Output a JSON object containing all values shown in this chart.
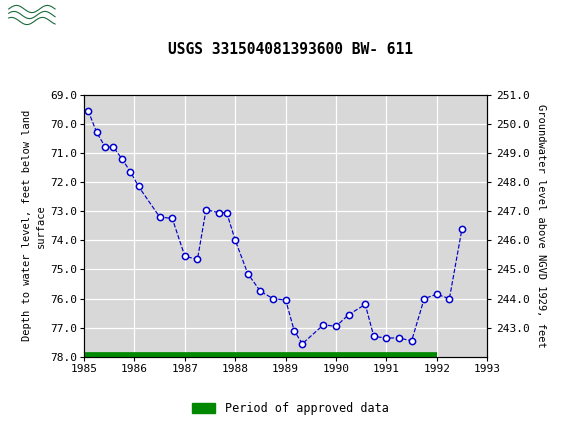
{
  "title": "USGS 331504081393600 BW- 611",
  "ylabel_left": "Depth to water level, feet below land\nsurface",
  "ylabel_right": "Groundwater level above NGVD 1929, feet",
  "header_color": "#1a6b3c",
  "background_color": "#ffffff",
  "plot_bg_color": "#d8d8d8",
  "line_color": "#0000cc",
  "marker_facecolor": "#ffffff",
  "marker_edgecolor": "#0000cc",
  "grid_color": "#ffffff",
  "x_data": [
    1985.08,
    1985.25,
    1985.42,
    1985.58,
    1985.75,
    1985.92,
    1986.08,
    1986.5,
    1986.75,
    1987.0,
    1987.25,
    1987.42,
    1987.67,
    1987.83,
    1988.0,
    1988.25,
    1988.5,
    1988.75,
    1989.0,
    1989.17,
    1989.33,
    1989.75,
    1990.0,
    1990.25,
    1990.58,
    1990.75,
    1991.0,
    1991.25,
    1991.5,
    1991.75,
    1992.0,
    1992.25,
    1992.5
  ],
  "y_data": [
    69.55,
    70.3,
    70.8,
    70.8,
    71.2,
    71.65,
    72.15,
    73.2,
    73.25,
    74.55,
    74.65,
    72.95,
    73.05,
    73.05,
    74.0,
    75.15,
    75.75,
    76.0,
    76.05,
    77.1,
    77.55,
    76.9,
    76.95,
    76.55,
    76.2,
    77.3,
    77.35,
    77.35,
    77.45,
    76.0,
    75.85,
    76.0,
    73.6
  ],
  "ylim_left": [
    78.0,
    69.0
  ],
  "xlim": [
    1985,
    1993
  ],
  "xticks": [
    1985,
    1986,
    1987,
    1988,
    1989,
    1990,
    1991,
    1992,
    1993
  ],
  "yticks_left": [
    69.0,
    70.0,
    71.0,
    72.0,
    73.0,
    74.0,
    75.0,
    76.0,
    77.0,
    78.0
  ],
  "right_y_values": [
    251.0,
    250.0,
    249.0,
    248.0,
    247.0,
    246.0,
    245.0,
    244.0,
    243.0
  ],
  "right_y_positions": [
    69.0,
    70.0,
    71.0,
    72.0,
    73.0,
    74.0,
    75.0,
    76.0,
    77.0
  ],
  "green_bar_x_start": 1985.0,
  "green_bar_x_end": 1992.0,
  "green_bar_y": 78.0,
  "green_color": "#008800",
  "legend_label": "Period of approved data"
}
